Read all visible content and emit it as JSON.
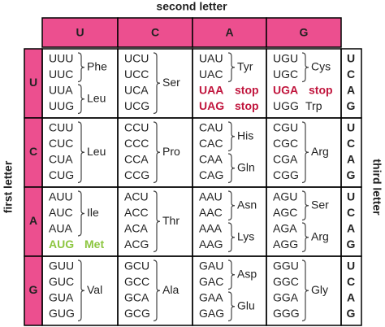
{
  "top_label": "second letter",
  "left_label": "first letter",
  "right_label": "third letter",
  "second_letters": [
    "U",
    "C",
    "A",
    "G"
  ],
  "rows": [
    {
      "first": "U",
      "third": [
        "U",
        "C",
        "A",
        "G"
      ],
      "cells": [
        [
          {
            "codons": [
              "UUU",
              "UUC"
            ],
            "amino": "Phe"
          },
          {
            "codons": [
              "UUA",
              "UUG"
            ],
            "amino": "Leu"
          }
        ],
        [
          {
            "codons": [
              "UCU",
              "UCC",
              "UCA",
              "UCG"
            ],
            "amino": "Ser"
          }
        ],
        [
          {
            "codons": [
              "UAU",
              "UAC"
            ],
            "amino": "Tyr"
          },
          {
            "codons": [
              "UAA"
            ],
            "amino": "stop",
            "color": "#c0143c"
          },
          {
            "codons": [
              "UAG"
            ],
            "amino": "stop",
            "color": "#c0143c"
          }
        ],
        [
          {
            "codons": [
              "UGU",
              "UGC"
            ],
            "amino": "Cys"
          },
          {
            "codons": [
              "UGA"
            ],
            "amino": "stop",
            "color": "#c0143c"
          },
          {
            "codons": [
              "UGG"
            ],
            "amino": "Trp"
          }
        ]
      ]
    },
    {
      "first": "C",
      "third": [
        "U",
        "C",
        "A",
        "G"
      ],
      "cells": [
        [
          {
            "codons": [
              "CUU",
              "CUC",
              "CUA",
              "CUG"
            ],
            "amino": "Leu"
          }
        ],
        [
          {
            "codons": [
              "CCU",
              "CCC",
              "CCA",
              "CCG"
            ],
            "amino": "Pro"
          }
        ],
        [
          {
            "codons": [
              "CAU",
              "CAC"
            ],
            "amino": "His"
          },
          {
            "codons": [
              "CAA",
              "CAG"
            ],
            "amino": "Gln"
          }
        ],
        [
          {
            "codons": [
              "CGU",
              "CGC",
              "CGA",
              "CGG"
            ],
            "amino": "Arg"
          }
        ]
      ]
    },
    {
      "first": "A",
      "third": [
        "U",
        "C",
        "A",
        "G"
      ],
      "cells": [
        [
          {
            "codons": [
              "AUU",
              "AUC",
              "AUA"
            ],
            "amino": "Ile"
          },
          {
            "codons": [
              "AUG"
            ],
            "amino": "Met",
            "color": "#8cc63f"
          }
        ],
        [
          {
            "codons": [
              "ACU",
              "ACC",
              "ACA",
              "ACG"
            ],
            "amino": "Thr"
          }
        ],
        [
          {
            "codons": [
              "AAU",
              "AAC"
            ],
            "amino": "Asn"
          },
          {
            "codons": [
              "AAA",
              "AAG"
            ],
            "amino": "Lys"
          }
        ],
        [
          {
            "codons": [
              "AGU",
              "AGC"
            ],
            "amino": "Ser"
          },
          {
            "codons": [
              "AGA",
              "AGG"
            ],
            "amino": "Arg"
          }
        ]
      ]
    },
    {
      "first": "G",
      "third": [
        "U",
        "C",
        "A",
        "G"
      ],
      "cells": [
        [
          {
            "codons": [
              "GUU",
              "GUC",
              "GUA",
              "GUG"
            ],
            "amino": "Val"
          }
        ],
        [
          {
            "codons": [
              "GCU",
              "GCC",
              "GCA",
              "GCG"
            ],
            "amino": "Ala"
          }
        ],
        [
          {
            "codons": [
              "GAU",
              "GAC"
            ],
            "amino": "Asp"
          },
          {
            "codons": [
              "GAA",
              "GAG"
            ],
            "amino": "Glu"
          }
        ],
        [
          {
            "codons": [
              "GGU",
              "GGC",
              "GGA",
              "GGG"
            ],
            "amino": "Gly"
          }
        ]
      ]
    }
  ]
}
